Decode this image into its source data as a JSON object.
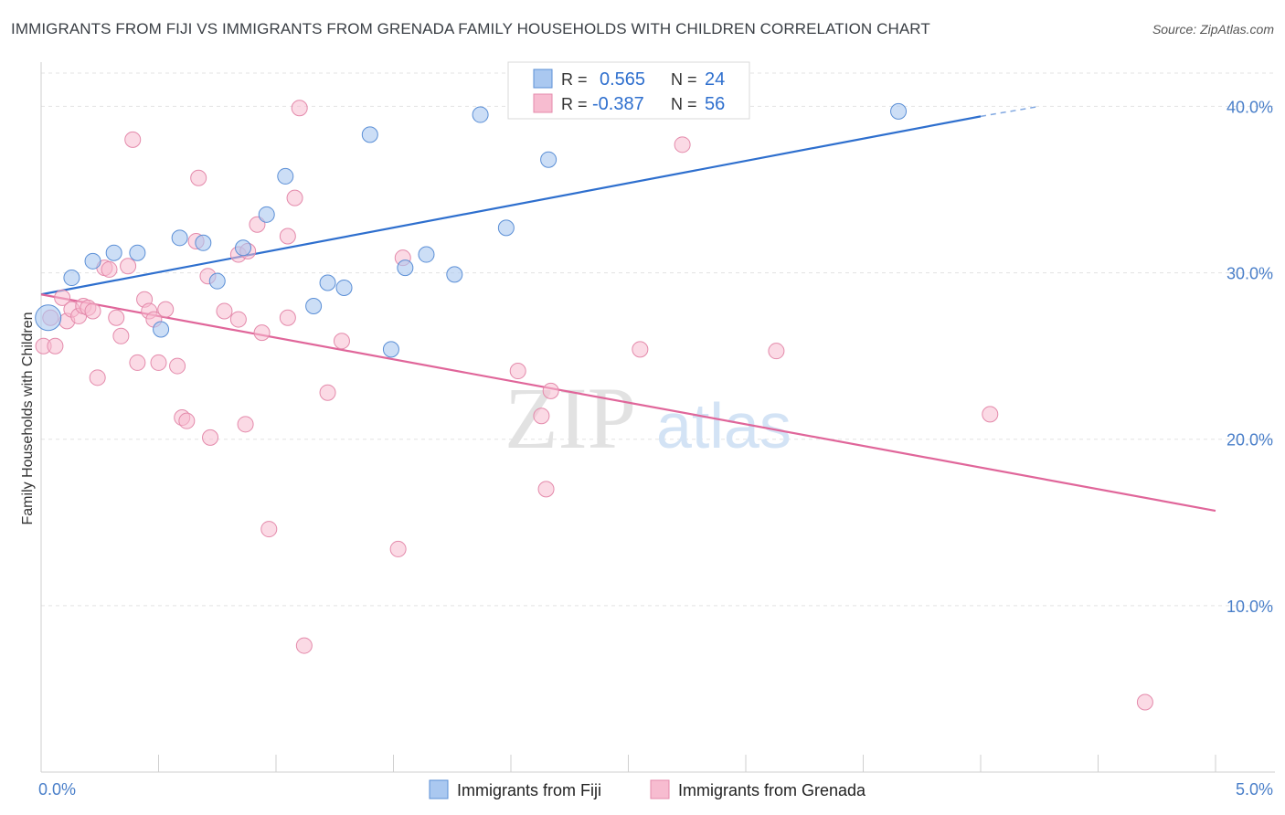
{
  "title": "IMMIGRANTS FROM FIJI VS IMMIGRANTS FROM GRENADA FAMILY HOUSEHOLDS WITH CHILDREN CORRELATION CHART",
  "source": "Source: ZipAtlas.com",
  "watermark": {
    "zip": "ZIP",
    "atlas": "atlas"
  },
  "colors": {
    "fiji_fill": "#aac8f0",
    "fiji_stroke": "#5b8fd6",
    "fiji_line": "#2e6fce",
    "grenada_fill": "#f7bcd0",
    "grenada_stroke": "#e48aab",
    "grenada_line": "#e0669a",
    "grid": "#e3e3e3",
    "tick_text": "#4a7fc9"
  },
  "stats": {
    "fiji": {
      "r_label": "R =",
      "r_value": "0.565",
      "n_label": "N =",
      "n_value": "24"
    },
    "grenada": {
      "r_label": "R =",
      "r_value": "-0.387",
      "n_label": "N =",
      "n_value": "56"
    }
  },
  "chart_data": {
    "type": "scatter",
    "title": "IMMIGRANTS FROM FIJI VS IMMIGRANTS FROM GRENADA FAMILY HOUSEHOLDS WITH CHILDREN CORRELATION CHART",
    "xlabel": "",
    "ylabel": "Family Households with Children",
    "xlim": [
      0,
      5.0
    ],
    "ylim": [
      0,
      42
    ],
    "x_tick_labels": [
      "0.0%",
      "5.0%"
    ],
    "y_ticks": [
      10,
      20,
      30,
      40
    ],
    "y_tick_labels": [
      "10.0%",
      "20.0%",
      "30.0%",
      "40.0%"
    ],
    "grid": true,
    "legend_position": "top-center",
    "series": [
      {
        "name": "Immigrants from Fiji",
        "points": [
          {
            "x": 0.03,
            "y": 27.3
          },
          {
            "x": 0.13,
            "y": 29.7
          },
          {
            "x": 0.22,
            "y": 30.7
          },
          {
            "x": 0.31,
            "y": 31.2
          },
          {
            "x": 0.41,
            "y": 31.2
          },
          {
            "x": 0.51,
            "y": 26.6
          },
          {
            "x": 0.59,
            "y": 32.1
          },
          {
            "x": 0.69,
            "y": 31.8
          },
          {
            "x": 0.75,
            "y": 29.5
          },
          {
            "x": 0.86,
            "y": 31.5
          },
          {
            "x": 0.96,
            "y": 33.5
          },
          {
            "x": 1.04,
            "y": 35.8
          },
          {
            "x": 1.16,
            "y": 28.0
          },
          {
            "x": 1.22,
            "y": 29.4
          },
          {
            "x": 1.29,
            "y": 29.1
          },
          {
            "x": 1.4,
            "y": 38.3
          },
          {
            "x": 1.49,
            "y": 25.4
          },
          {
            "x": 1.55,
            "y": 30.3
          },
          {
            "x": 1.64,
            "y": 31.1
          },
          {
            "x": 1.76,
            "y": 29.9
          },
          {
            "x": 1.87,
            "y": 39.5
          },
          {
            "x": 1.98,
            "y": 32.7
          },
          {
            "x": 2.16,
            "y": 36.8
          },
          {
            "x": 3.65,
            "y": 39.7
          }
        ],
        "trend": {
          "x": [
            0.0,
            4.0
          ],
          "y": [
            28.7,
            39.4
          ],
          "dashed_extension": {
            "x": [
              4.0,
              4.25
            ],
            "y": [
              39.4,
              40.0
            ]
          }
        }
      },
      {
        "name": "Immigrants from Grenada",
        "points": [
          {
            "x": 0.01,
            "y": 25.6
          },
          {
            "x": 0.04,
            "y": 27.3
          },
          {
            "x": 0.06,
            "y": 25.6
          },
          {
            "x": 0.09,
            "y": 28.5
          },
          {
            "x": 0.11,
            "y": 27.1
          },
          {
            "x": 0.13,
            "y": 27.8
          },
          {
            "x": 0.16,
            "y": 27.4
          },
          {
            "x": 0.18,
            "y": 28.0
          },
          {
            "x": 0.2,
            "y": 27.9
          },
          {
            "x": 0.22,
            "y": 27.7
          },
          {
            "x": 0.24,
            "y": 23.7
          },
          {
            "x": 0.27,
            "y": 30.3
          },
          {
            "x": 0.29,
            "y": 30.2
          },
          {
            "x": 0.32,
            "y": 27.3
          },
          {
            "x": 0.34,
            "y": 26.2
          },
          {
            "x": 0.37,
            "y": 30.4
          },
          {
            "x": 0.39,
            "y": 38.0
          },
          {
            "x": 0.41,
            "y": 24.6
          },
          {
            "x": 0.44,
            "y": 28.4
          },
          {
            "x": 0.46,
            "y": 27.7
          },
          {
            "x": 0.48,
            "y": 27.2
          },
          {
            "x": 0.5,
            "y": 24.6
          },
          {
            "x": 0.53,
            "y": 27.8
          },
          {
            "x": 0.58,
            "y": 24.4
          },
          {
            "x": 0.6,
            "y": 21.3
          },
          {
            "x": 0.62,
            "y": 21.1
          },
          {
            "x": 0.66,
            "y": 31.9
          },
          {
            "x": 0.67,
            "y": 35.7
          },
          {
            "x": 0.71,
            "y": 29.8
          },
          {
            "x": 0.72,
            "y": 20.1
          },
          {
            "x": 0.78,
            "y": 27.7
          },
          {
            "x": 0.84,
            "y": 27.2
          },
          {
            "x": 0.84,
            "y": 31.1
          },
          {
            "x": 0.87,
            "y": 20.9
          },
          {
            "x": 0.88,
            "y": 31.3
          },
          {
            "x": 0.92,
            "y": 32.9
          },
          {
            "x": 0.94,
            "y": 26.4
          },
          {
            "x": 0.97,
            "y": 14.6
          },
          {
            "x": 1.05,
            "y": 32.2
          },
          {
            "x": 1.05,
            "y": 27.3
          },
          {
            "x": 1.08,
            "y": 34.5
          },
          {
            "x": 1.1,
            "y": 39.9
          },
          {
            "x": 1.12,
            "y": 7.6
          },
          {
            "x": 1.22,
            "y": 22.8
          },
          {
            "x": 1.28,
            "y": 25.9
          },
          {
            "x": 1.52,
            "y": 13.4
          },
          {
            "x": 1.54,
            "y": 30.9
          },
          {
            "x": 2.03,
            "y": 24.1
          },
          {
            "x": 2.13,
            "y": 21.4
          },
          {
            "x": 2.15,
            "y": 17.0
          },
          {
            "x": 2.17,
            "y": 22.9
          },
          {
            "x": 2.55,
            "y": 25.4
          },
          {
            "x": 2.73,
            "y": 37.7
          },
          {
            "x": 3.13,
            "y": 25.3
          },
          {
            "x": 4.04,
            "y": 21.5
          },
          {
            "x": 4.7,
            "y": 4.2
          }
        ],
        "trend": {
          "x": [
            0.0,
            5.0
          ],
          "y": [
            28.7,
            15.7
          ]
        }
      }
    ]
  }
}
